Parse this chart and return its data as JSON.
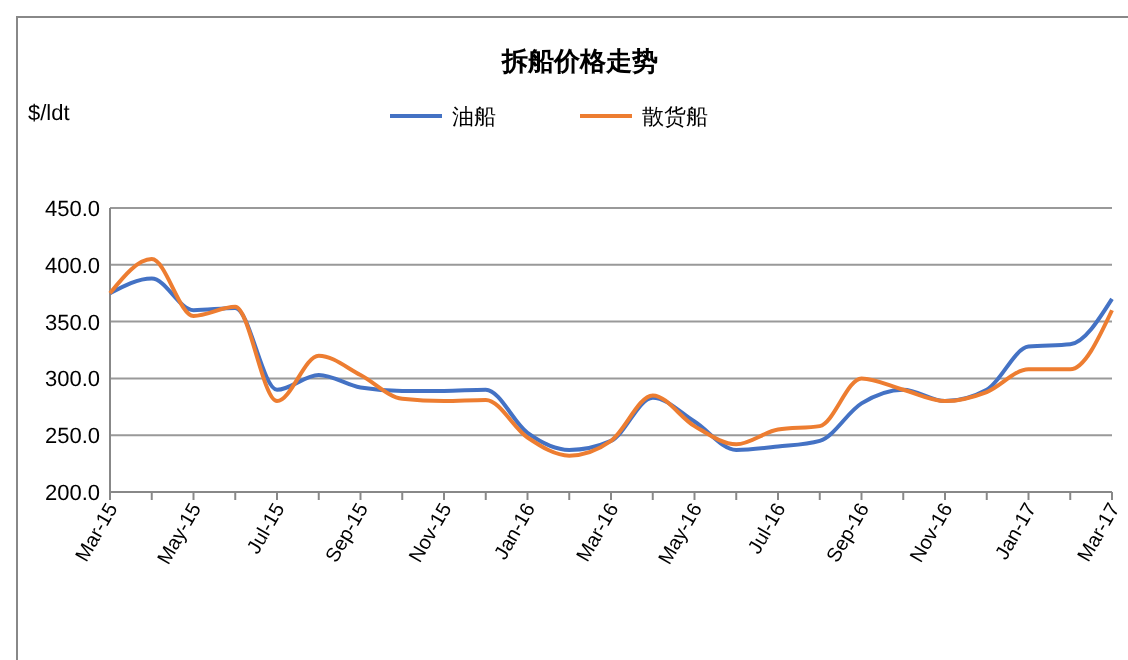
{
  "chart_data": {
    "type": "line",
    "title": "拆船价格走势",
    "ylabel": "$/ldt",
    "categories": [
      "Mar-15",
      null,
      "May-15",
      null,
      "Jul-15",
      null,
      "Sep-15",
      null,
      "Nov-15",
      null,
      "Jan-16",
      null,
      "Mar-16",
      null,
      "May-16",
      null,
      "Jul-16",
      null,
      "Sep-16",
      null,
      "Nov-16",
      null,
      "Jan-17",
      null,
      "Mar-17"
    ],
    "series": [
      {
        "name": "油船",
        "color": "#4472c4",
        "values": [
          375,
          388,
          360,
          362,
          290,
          303,
          292,
          289,
          289,
          290,
          252,
          237,
          245,
          283,
          262,
          237,
          240,
          245,
          278,
          290,
          280,
          290,
          328,
          330,
          370
        ]
      },
      {
        "name": "散货船",
        "color": "#ed7d31",
        "values": [
          375,
          405,
          355,
          363,
          280,
          320,
          303,
          282,
          280,
          281,
          248,
          232,
          245,
          285,
          258,
          242,
          255,
          258,
          300,
          290,
          280,
          288,
          308,
          308,
          360
        ]
      }
    ],
    "ylim": [
      200,
      450
    ],
    "yticks": [
      {
        "value": 200,
        "label": "200.0"
      },
      {
        "value": 250,
        "label": "250.0"
      },
      {
        "value": 300,
        "label": "300.0"
      },
      {
        "value": 350,
        "label": "350.0"
      },
      {
        "value": 400,
        "label": "400.0"
      },
      {
        "value": 450,
        "label": "450.0"
      }
    ],
    "grid": "y",
    "legend": "top",
    "marker": "none",
    "line_style": "solid"
  }
}
